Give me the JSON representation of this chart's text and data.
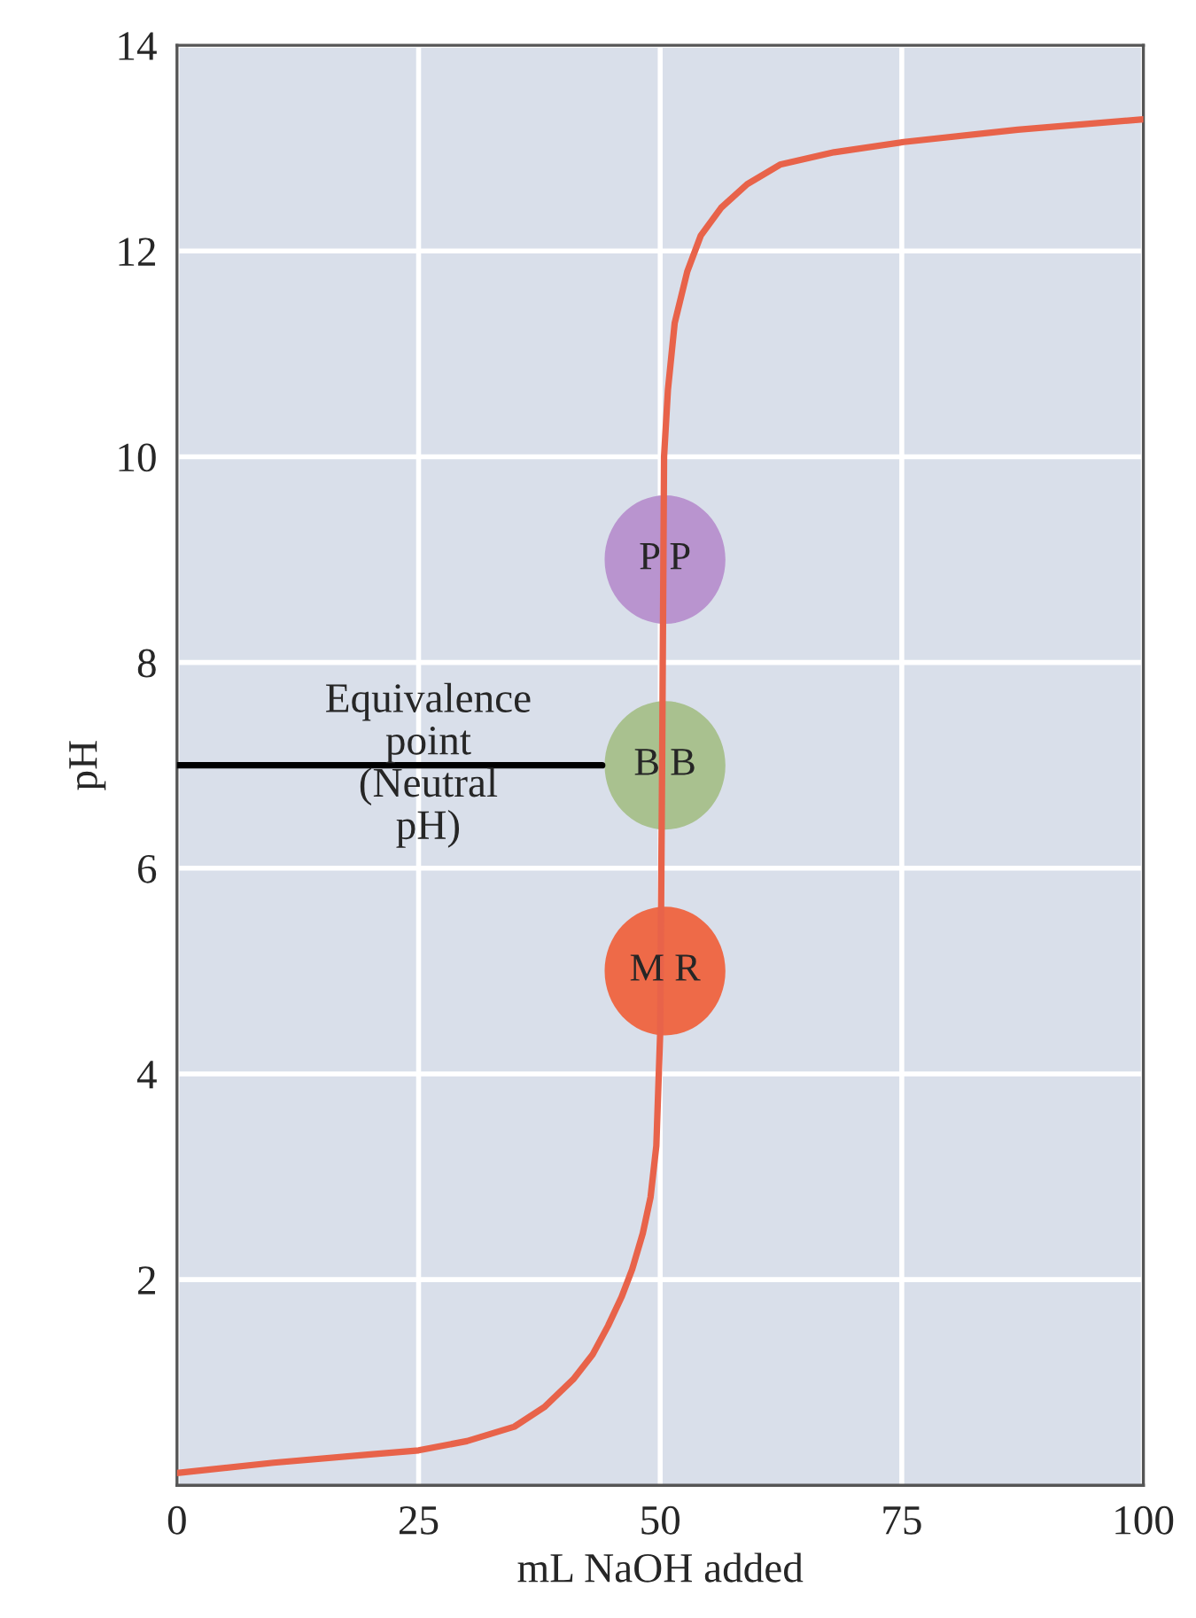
{
  "chart_data": {
    "type": "line",
    "xlabel": "mL NaOH added",
    "ylabel": "pH",
    "xlim": [
      0,
      100
    ],
    "xticks": [
      0,
      25,
      50,
      75,
      100
    ],
    "ylim": [
      0,
      14
    ],
    "yticks": [
      2,
      4,
      6,
      8,
      10,
      12,
      14
    ],
    "grid": true,
    "series": [
      {
        "color": "#e8634a",
        "x": [
          0,
          10,
          20,
          25,
          30,
          34.9,
          38,
          41,
          43,
          44.6,
          46,
          47.1,
          48.2,
          49,
          49.6,
          50,
          50.2,
          50.4,
          50.8,
          51.5,
          52.8,
          54.2,
          56.3,
          59,
          62.4,
          68,
          75.2,
          87,
          100
        ],
        "values": [
          0.12,
          0.22,
          0.3,
          0.34,
          0.43,
          0.57,
          0.76,
          1.03,
          1.27,
          1.55,
          1.83,
          2.1,
          2.45,
          2.8,
          3.3,
          4.4,
          7,
          10,
          10.65,
          11.3,
          11.8,
          12.15,
          12.42,
          12.65,
          12.84,
          12.96,
          13.06,
          13.18,
          13.28
        ]
      },
      {
        "color": "#000000",
        "x": [
          0,
          44
        ],
        "values": [
          7,
          7
        ]
      }
    ],
    "annotations": [
      "Equivalence\npoint\n(Neutral\npH)",
      {
        "text": "P P",
        "y": 9
      },
      {
        "text": "B B",
        "y": 7
      },
      {
        "text": "M R",
        "y": 5
      }
    ]
  }
}
